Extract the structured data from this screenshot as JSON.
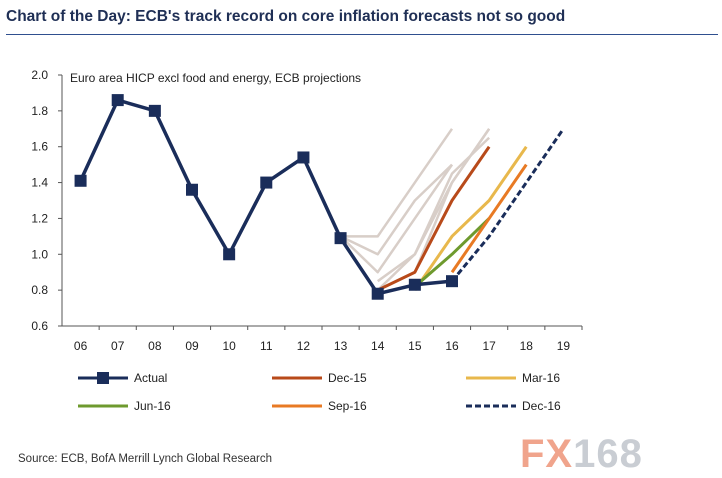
{
  "header": {
    "title": "Chart of the Day: ECB's track record on core inflation forecasts not so good"
  },
  "footer": {
    "source": "Source: ECB, BofA Merrill Lynch Global Research"
  },
  "watermark": {
    "text": "FX168",
    "part1": "FX",
    "part2": "168"
  },
  "chart_data": {
    "type": "line",
    "subtitle": "Euro area HICP excl food and energy, ECB projections",
    "categories": [
      "06",
      "07",
      "08",
      "09",
      "10",
      "11",
      "12",
      "13",
      "14",
      "15",
      "16",
      "17",
      "18",
      "19"
    ],
    "ylim": [
      0.6,
      2.0
    ],
    "yticks": [
      "0.6",
      "0.8",
      "1.0",
      "1.2",
      "1.4",
      "1.6",
      "1.8",
      "2.0"
    ],
    "grid": false,
    "legend_position": "bottom",
    "actual": {
      "name": "Actual",
      "color": "#1a2d5a",
      "points": [
        [
          0,
          1.41
        ],
        [
          1,
          1.86
        ],
        [
          2,
          1.8
        ],
        [
          3,
          1.36
        ],
        [
          4,
          1.0
        ],
        [
          5,
          1.4
        ],
        [
          6,
          1.54
        ],
        [
          7,
          1.09
        ],
        [
          8,
          0.78
        ],
        [
          9,
          0.83
        ],
        [
          10,
          0.85
        ]
      ]
    },
    "old_projections": [
      [
        [
          7,
          1.1
        ],
        [
          8,
          1.1
        ],
        [
          9,
          1.4
        ],
        [
          10,
          1.7
        ]
      ],
      [
        [
          7,
          1.1
        ],
        [
          8,
          1.0
        ],
        [
          9,
          1.3
        ],
        [
          10,
          1.5
        ]
      ],
      [
        [
          7,
          1.1
        ],
        [
          8,
          0.9
        ],
        [
          9,
          1.2
        ],
        [
          10,
          1.5
        ]
      ],
      [
        [
          8,
          0.85
        ],
        [
          9,
          1.0
        ],
        [
          10,
          1.4
        ],
        [
          11,
          1.7
        ]
      ],
      [
        [
          8,
          0.8
        ],
        [
          9,
          0.9
        ],
        [
          10,
          1.4
        ],
        [
          11,
          1.7
        ]
      ],
      [
        [
          8,
          0.8
        ],
        [
          9,
          1.0
        ],
        [
          10,
          1.45
        ],
        [
          11,
          1.65
        ]
      ]
    ],
    "old_color": "#d8cec8",
    "series": [
      {
        "name": "Dec-15",
        "color": "#b84a1a",
        "dash": "",
        "points": [
          [
            8,
            0.8
          ],
          [
            9,
            0.9
          ],
          [
            10,
            1.3
          ],
          [
            11,
            1.6
          ]
        ]
      },
      {
        "name": "Mar-16",
        "color": "#e8b84c",
        "dash": "",
        "points": [
          [
            9,
            0.8
          ],
          [
            10,
            1.1
          ],
          [
            11,
            1.3
          ],
          [
            12,
            1.6
          ]
        ]
      },
      {
        "name": "Jun-16",
        "color": "#6e9a2e",
        "dash": "",
        "points": [
          [
            9,
            0.82
          ],
          [
            10,
            1.0
          ],
          [
            11,
            1.2
          ]
        ]
      },
      {
        "name": "Sep-16",
        "color": "#e87a24",
        "dash": "",
        "points": [
          [
            10,
            0.9
          ],
          [
            11,
            1.2
          ],
          [
            12,
            1.5
          ]
        ]
      },
      {
        "name": "Dec-16",
        "color": "#1a2d5a",
        "dash": "6,3",
        "points": [
          [
            10,
            0.85
          ],
          [
            11,
            1.1
          ],
          [
            12,
            1.4
          ],
          [
            13,
            1.7
          ]
        ]
      }
    ]
  }
}
